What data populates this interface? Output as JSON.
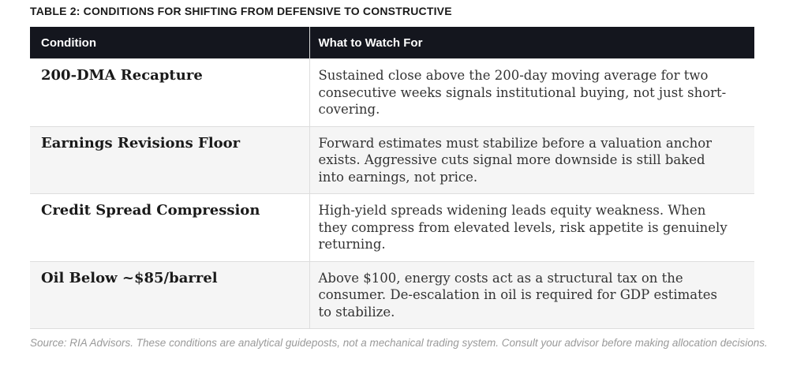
{
  "title": "TABLE 2: CONDITIONS FOR SHIFTING FROM DEFENSIVE TO CONSTRUCTIVE",
  "table": {
    "columns": [
      "Condition",
      "What to Watch For"
    ],
    "rows": [
      {
        "condition": "200-DMA Recapture",
        "watch": "Sustained close above the 200-day moving average for two consecutive weeks signals institutional buying, not just short-covering."
      },
      {
        "condition": "Earnings Revisions Floor",
        "watch": "Forward estimates must stabilize before a valuation anchor exists. Aggressive cuts signal more downside is still baked into earnings, not price."
      },
      {
        "condition": "Credit Spread Compression",
        "watch": "High-yield spreads widening leads equity weakness. When they compress from elevated levels, risk appetite is genuinely returning."
      },
      {
        "condition": "Oil Below ~$85/barrel",
        "watch": "Above $100, energy costs act as a structural tax on the consumer. De-escalation in oil is required for GDP estimates to stabilize."
      }
    ]
  },
  "source_note": "Source: RIA Advisors. These conditions are analytical guideposts, not a mechanical trading system. Consult your advisor before making allocation decisions.",
  "colors": {
    "header_bg": "#14161e",
    "header_text": "#ffffff",
    "row_alt_bg": "#f5f5f5",
    "border": "#dddddd",
    "condition_text": "#1a1a1a",
    "body_text": "#333333",
    "source_text": "#9a9a9a"
  }
}
